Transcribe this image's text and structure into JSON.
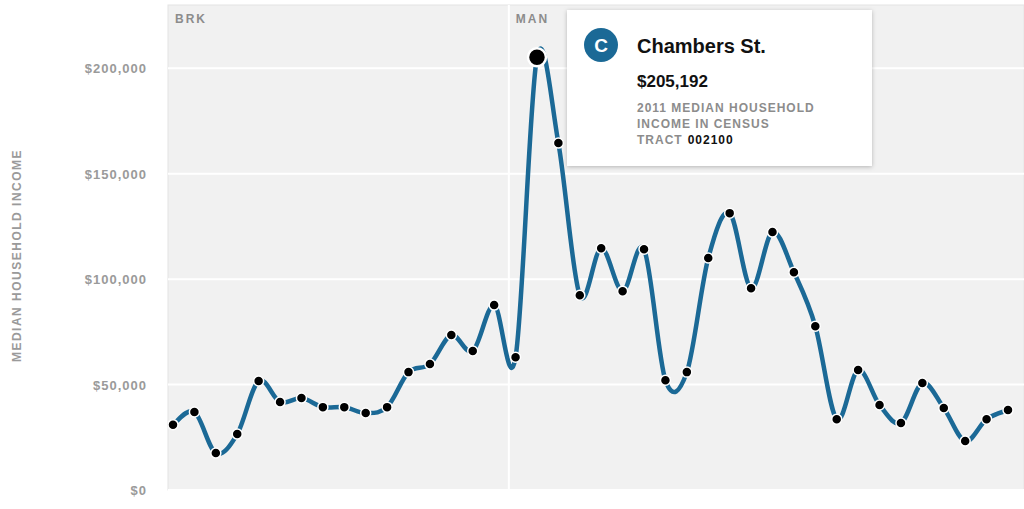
{
  "chart_data": {
    "type": "line",
    "y_label": "MEDIAN HOUSEHOLD INCOME",
    "categories": [
      null,
      null,
      null,
      null,
      null,
      null,
      null,
      null,
      null,
      null,
      null,
      null,
      null,
      null,
      null,
      null,
      null,
      null,
      null,
      null,
      null,
      null,
      null,
      null,
      null,
      null,
      null,
      null,
      null,
      null,
      null,
      null,
      null,
      null,
      null,
      null,
      null,
      null,
      null,
      null
    ],
    "values": [
      31000,
      37000,
      17500,
      26500,
      51700,
      41700,
      43600,
      39300,
      39300,
      36500,
      39300,
      55900,
      59700,
      73500,
      65900,
      87700,
      63000,
      205192,
      164500,
      92400,
      114700,
      94300,
      114200,
      52100,
      55900,
      110000,
      131300,
      95700,
      122300,
      103300,
      77700,
      33600,
      56900,
      40300,
      31800,
      50700,
      38900,
      23200,
      33600,
      37900
    ],
    "color": "#1b6996",
    "marker": "circle",
    "ylim": [
      0,
      230000
    ],
    "yticks": [
      {
        "value": 0,
        "label": "$0"
      },
      {
        "value": 50000,
        "label": "$50,000"
      },
      {
        "value": 100000,
        "label": "$100,000"
      },
      {
        "value": 150000,
        "label": "$150,000"
      },
      {
        "value": 200000,
        "label": "$200,000"
      }
    ],
    "grid": true,
    "regions": [
      {
        "label": "BRK",
        "start": 0
      },
      {
        "label": "MAN",
        "start": 16
      }
    ],
    "annotation": {
      "index": 17,
      "badge": "C",
      "station": "Chambers St.",
      "value_label": "$205,192",
      "note": "2011 MEDIAN HOUSEHOLD INCOME IN CENSUS TRACT",
      "tract": "002100"
    }
  }
}
